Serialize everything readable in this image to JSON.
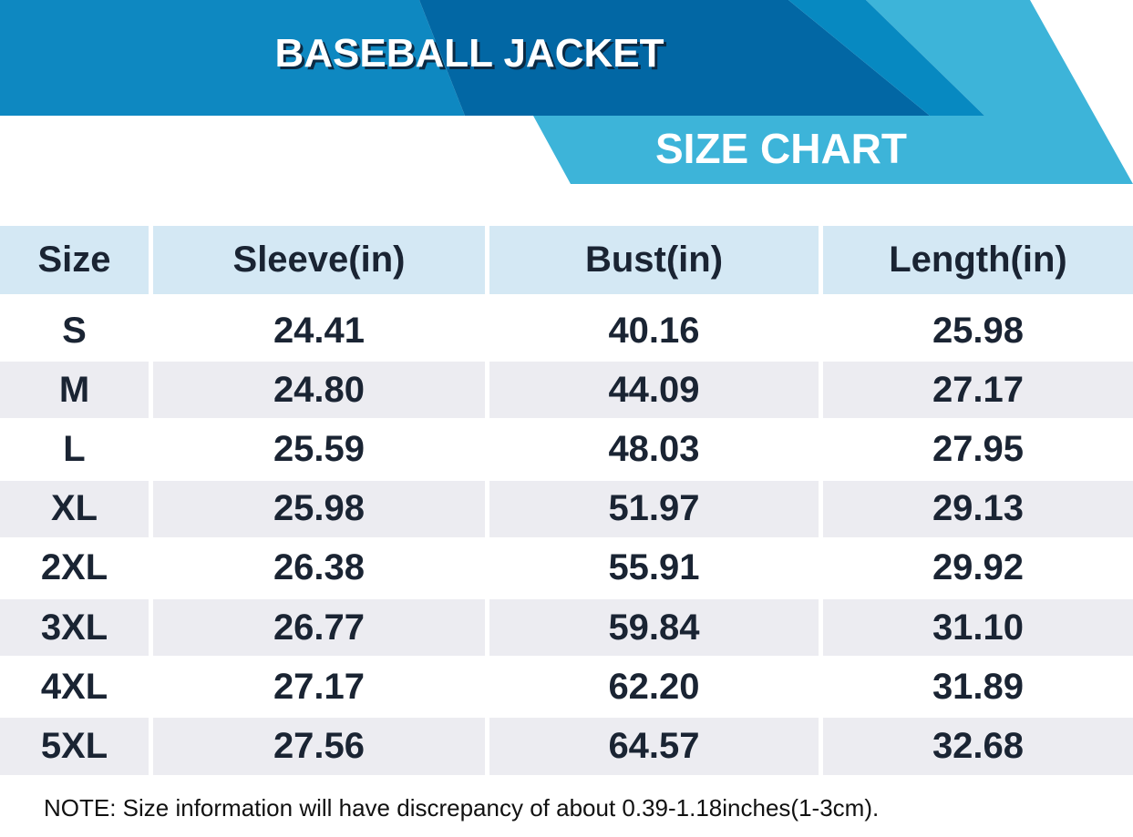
{
  "header": {
    "title": "BASEBALL JACKET",
    "subtitle": "SIZE CHART"
  },
  "table": {
    "columns": [
      "Size",
      "Sleeve(in)",
      "Bust(in)",
      "Length(in)"
    ],
    "rows": [
      [
        "S",
        "24.41",
        "40.16",
        "25.98"
      ],
      [
        "M",
        "24.80",
        "44.09",
        "27.17"
      ],
      [
        "L",
        "25.59",
        "48.03",
        "27.95"
      ],
      [
        "XL",
        "25.98",
        "51.97",
        "29.13"
      ],
      [
        "2XL",
        "26.38",
        "55.91",
        "29.92"
      ],
      [
        "3XL",
        "26.77",
        "59.84",
        "31.10"
      ],
      [
        "4XL",
        "27.17",
        "62.20",
        "31.89"
      ],
      [
        "5XL",
        "27.56",
        "64.57",
        "32.68"
      ]
    ]
  },
  "note": "NOTE: Size information will have discrepancy of about 0.39-1.18inches(1-3cm)."
}
